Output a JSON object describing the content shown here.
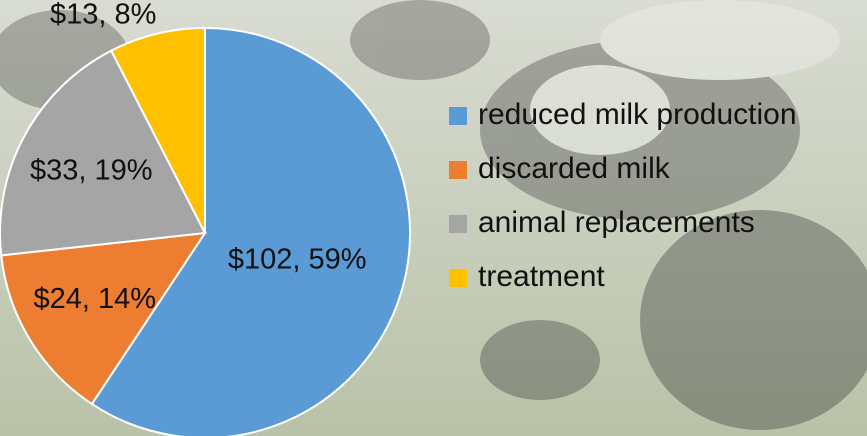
{
  "chart_data": {
    "type": "pie",
    "categories": [
      "reduced milk production",
      "discarded milk",
      "animal replacements",
      "treatment"
    ],
    "values": [
      102,
      24,
      33,
      13
    ],
    "value_labels": [
      "$102, 59%",
      "$24, 14%",
      "$33, 19%",
      "$13, 8%"
    ],
    "colors": [
      "#5b9bd5",
      "#ed7d31",
      "#a5a5a5",
      "#ffc000"
    ],
    "legend": "right"
  }
}
